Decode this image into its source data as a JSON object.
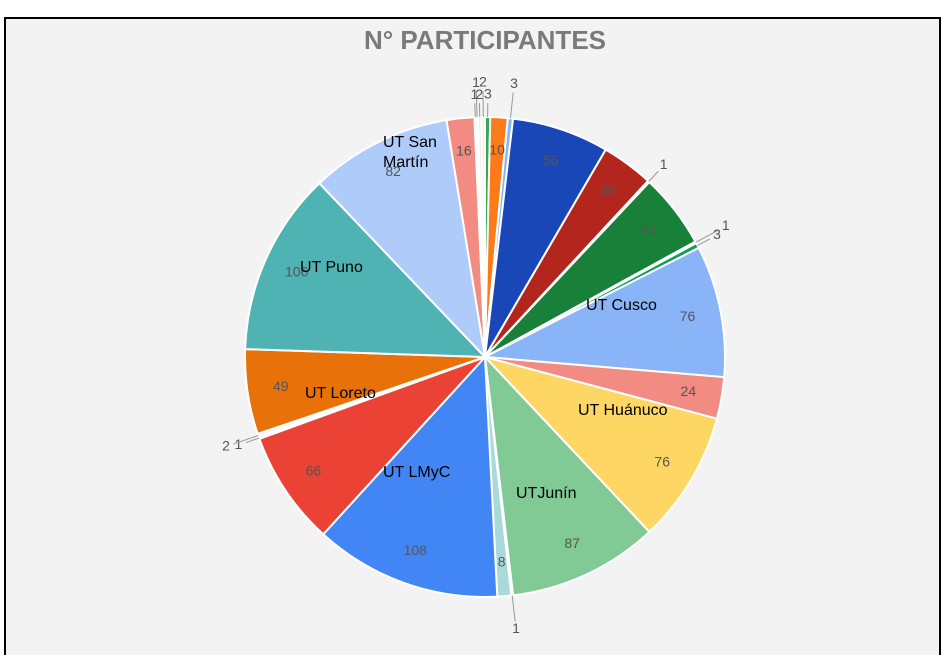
{
  "chart_data": {
    "type": "pie",
    "title": "N° PARTICIPANTES",
    "values": [
      3,
      10,
      3,
      56,
      30,
      1,
      43,
      1,
      3,
      76,
      24,
      76,
      87,
      1,
      8,
      108,
      66,
      1,
      2,
      49,
      106,
      82,
      16,
      1,
      1,
      2,
      2
    ],
    "colors": [
      "#34a853",
      "#fa7b17",
      "#8ab4f8",
      "#1a47b8",
      "#b3261e",
      "#e8f0fe",
      "#188038",
      "#e6e6e6",
      "#0f9d58",
      "#8ab4f8",
      "#f28b82",
      "#fdd663",
      "#81c995",
      "#cccccc",
      "#a8dadc",
      "#4285f4",
      "#ea4335",
      "#dddddd",
      "#f8f8f8",
      "#e8710a",
      "#4fb3b3",
      "#aecbfa",
      "#f28b82",
      "#ffffff",
      "#eeeeee",
      "#fce8e6",
      "#e6f4ea"
    ],
    "annotations": [
      "UT San Martín",
      "UT Puno",
      "UT Cusco",
      "UT Loreto",
      "UT Huánuco",
      "UT LMyC",
      "UTJunín"
    ]
  }
}
